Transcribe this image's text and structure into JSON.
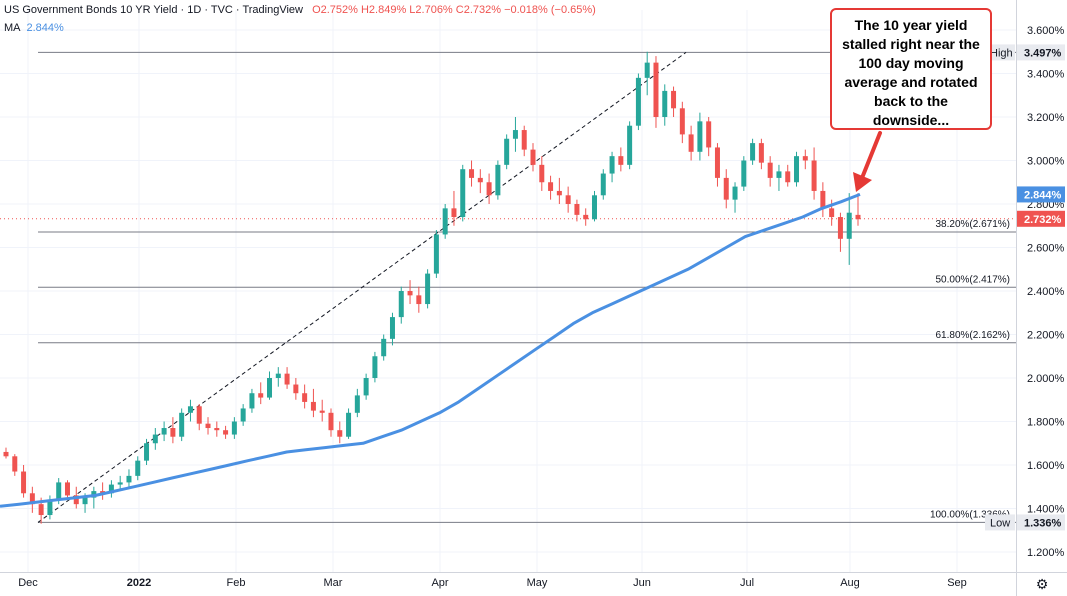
{
  "header": {
    "symbol": "US Government Bonds 10 YR Yield",
    "interval": "1D",
    "source": "TVC",
    "brand": "TradingView",
    "ohlc": "O2.752% H2.849% L2.706% C2.732% −0.018% (−0.65%)"
  },
  "indicator": {
    "label": "MA",
    "value": "2.844%",
    "color": "#4a90e2"
  },
  "callout": {
    "text": "The 10 year yield stalled right near the 100 day moving average and rotated back to the downside..."
  },
  "colors": {
    "up": "#26a69a",
    "down": "#ef5350",
    "ma": "#4a90e2",
    "arrow": "#e53935"
  },
  "chart_data": {
    "type": "candlestick",
    "ylim": [
      1.2,
      3.6
    ],
    "y_ticks": [
      "3.600%",
      "3.400%",
      "3.200%",
      "3.000%",
      "2.800%",
      "2.600%",
      "2.400%",
      "2.200%",
      "2.000%",
      "1.800%",
      "1.600%",
      "1.400%",
      "1.200%"
    ],
    "x_ticks": [
      "Dec",
      "2022",
      "Feb",
      "Mar",
      "Apr",
      "May",
      "Jun",
      "Jul",
      "Aug",
      "Sep"
    ],
    "price_tags": [
      {
        "label": "High",
        "value": "3.497%"
      },
      {
        "label": "MA",
        "value": "2.844%"
      },
      {
        "label": "Last",
        "value": "2.732%"
      },
      {
        "label": "Low",
        "value": "1.336%"
      }
    ],
    "fib_levels": [
      {
        "label": "38.20%(2.671%)",
        "value": 2.671
      },
      {
        "label": "50.00%(2.417%)",
        "value": 2.417
      },
      {
        "label": "61.80%(2.162%)",
        "value": 2.162
      },
      {
        "label": "100.00%(1.336%)",
        "value": 1.336
      }
    ],
    "high_level": 3.497,
    "last_close": 2.732,
    "ma_series": [
      1.41,
      1.42,
      1.43,
      1.44,
      1.45,
      1.46,
      1.48,
      1.5,
      1.52,
      1.54,
      1.56,
      1.58,
      1.6,
      1.62,
      1.64,
      1.66,
      1.67,
      1.68,
      1.69,
      1.7,
      1.73,
      1.76,
      1.8,
      1.84,
      1.89,
      1.95,
      2.01,
      2.07,
      2.13,
      2.19,
      2.25,
      2.3,
      2.34,
      2.38,
      2.42,
      2.46,
      2.5,
      2.55,
      2.6,
      2.65,
      2.68,
      2.71,
      2.74,
      2.78,
      2.81,
      2.844
    ],
    "candles": [
      [
        1.66,
        1.68,
        1.63,
        1.64
      ],
      [
        1.64,
        1.65,
        1.55,
        1.57
      ],
      [
        1.57,
        1.6,
        1.45,
        1.47
      ],
      [
        1.47,
        1.5,
        1.38,
        1.42
      ],
      [
        1.42,
        1.45,
        1.33,
        1.37
      ],
      [
        1.37,
        1.46,
        1.35,
        1.44
      ],
      [
        1.44,
        1.54,
        1.42,
        1.52
      ],
      [
        1.52,
        1.53,
        1.44,
        1.46
      ],
      [
        1.46,
        1.5,
        1.4,
        1.42
      ],
      [
        1.42,
        1.47,
        1.38,
        1.45
      ],
      [
        1.45,
        1.5,
        1.4,
        1.48
      ],
      [
        1.48,
        1.52,
        1.44,
        1.47
      ],
      [
        1.47,
        1.53,
        1.45,
        1.51
      ],
      [
        1.51,
        1.55,
        1.49,
        1.52
      ],
      [
        1.52,
        1.58,
        1.5,
        1.55
      ],
      [
        1.55,
        1.64,
        1.53,
        1.62
      ],
      [
        1.62,
        1.72,
        1.6,
        1.7
      ],
      [
        1.7,
        1.77,
        1.67,
        1.74
      ],
      [
        1.74,
        1.8,
        1.71,
        1.77
      ],
      [
        1.77,
        1.82,
        1.7,
        1.73
      ],
      [
        1.73,
        1.86,
        1.71,
        1.84
      ],
      [
        1.84,
        1.9,
        1.8,
        1.87
      ],
      [
        1.87,
        1.88,
        1.76,
        1.79
      ],
      [
        1.79,
        1.82,
        1.74,
        1.77
      ],
      [
        1.77,
        1.8,
        1.73,
        1.76
      ],
      [
        1.76,
        1.78,
        1.72,
        1.74
      ],
      [
        1.74,
        1.82,
        1.72,
        1.8
      ],
      [
        1.8,
        1.88,
        1.78,
        1.86
      ],
      [
        1.86,
        1.95,
        1.84,
        1.93
      ],
      [
        1.93,
        1.98,
        1.88,
        1.91
      ],
      [
        1.91,
        2.03,
        1.9,
        2.0
      ],
      [
        2.0,
        2.05,
        1.96,
        2.02
      ],
      [
        2.02,
        2.05,
        1.95,
        1.97
      ],
      [
        1.97,
        2.0,
        1.9,
        1.93
      ],
      [
        1.93,
        1.97,
        1.86,
        1.89
      ],
      [
        1.89,
        1.95,
        1.82,
        1.85
      ],
      [
        1.85,
        1.9,
        1.8,
        1.84
      ],
      [
        1.84,
        1.86,
        1.73,
        1.76
      ],
      [
        1.76,
        1.8,
        1.7,
        1.73
      ],
      [
        1.73,
        1.86,
        1.72,
        1.84
      ],
      [
        1.84,
        1.95,
        1.82,
        1.92
      ],
      [
        1.92,
        2.02,
        1.9,
        2.0
      ],
      [
        2.0,
        2.12,
        1.98,
        2.1
      ],
      [
        2.1,
        2.2,
        2.08,
        2.18
      ],
      [
        2.18,
        2.3,
        2.15,
        2.28
      ],
      [
        2.28,
        2.42,
        2.25,
        2.4
      ],
      [
        2.4,
        2.45,
        2.34,
        2.38
      ],
      [
        2.38,
        2.42,
        2.3,
        2.34
      ],
      [
        2.34,
        2.5,
        2.32,
        2.48
      ],
      [
        2.48,
        2.68,
        2.46,
        2.66
      ],
      [
        2.66,
        2.8,
        2.64,
        2.78
      ],
      [
        2.78,
        2.86,
        2.7,
        2.74
      ],
      [
        2.74,
        2.98,
        2.72,
        2.96
      ],
      [
        2.96,
        3.0,
        2.88,
        2.92
      ],
      [
        2.92,
        2.96,
        2.85,
        2.9
      ],
      [
        2.9,
        2.94,
        2.8,
        2.84
      ],
      [
        2.84,
        3.0,
        2.82,
        2.98
      ],
      [
        2.98,
        3.12,
        2.96,
        3.1
      ],
      [
        3.1,
        3.2,
        3.04,
        3.14
      ],
      [
        3.14,
        3.16,
        3.02,
        3.05
      ],
      [
        3.05,
        3.08,
        2.95,
        2.98
      ],
      [
        2.98,
        3.02,
        2.86,
        2.9
      ],
      [
        2.9,
        2.93,
        2.82,
        2.86
      ],
      [
        2.86,
        2.92,
        2.8,
        2.84
      ],
      [
        2.84,
        2.88,
        2.76,
        2.8
      ],
      [
        2.8,
        2.82,
        2.72,
        2.75
      ],
      [
        2.75,
        2.78,
        2.7,
        2.73
      ],
      [
        2.73,
        2.86,
        2.72,
        2.84
      ],
      [
        2.84,
        2.96,
        2.82,
        2.94
      ],
      [
        2.94,
        3.04,
        2.9,
        3.02
      ],
      [
        3.02,
        3.06,
        2.95,
        2.98
      ],
      [
        2.98,
        3.18,
        2.96,
        3.16
      ],
      [
        3.16,
        3.4,
        3.14,
        3.38
      ],
      [
        3.38,
        3.5,
        3.3,
        3.45
      ],
      [
        3.45,
        3.48,
        3.15,
        3.2
      ],
      [
        3.2,
        3.35,
        3.16,
        3.32
      ],
      [
        3.32,
        3.34,
        3.2,
        3.24
      ],
      [
        3.24,
        3.27,
        3.08,
        3.12
      ],
      [
        3.12,
        3.16,
        3.0,
        3.04
      ],
      [
        3.04,
        3.22,
        3.0,
        3.18
      ],
      [
        3.18,
        3.2,
        3.02,
        3.06
      ],
      [
        3.06,
        3.08,
        2.88,
        2.92
      ],
      [
        2.92,
        2.96,
        2.78,
        2.82
      ],
      [
        2.82,
        2.9,
        2.76,
        2.88
      ],
      [
        2.88,
        3.02,
        2.86,
        3.0
      ],
      [
        3.0,
        3.1,
        2.98,
        3.08
      ],
      [
        3.08,
        3.1,
        2.96,
        2.99
      ],
      [
        2.99,
        3.02,
        2.88,
        2.92
      ],
      [
        2.92,
        2.98,
        2.86,
        2.95
      ],
      [
        2.95,
        2.98,
        2.88,
        2.9
      ],
      [
        2.9,
        3.04,
        2.88,
        3.02
      ],
      [
        3.02,
        3.05,
        2.96,
        3.0
      ],
      [
        3.0,
        3.06,
        2.82,
        2.86
      ],
      [
        2.86,
        2.9,
        2.74,
        2.78
      ],
      [
        2.78,
        2.82,
        2.7,
        2.74
      ],
      [
        2.74,
        2.76,
        2.58,
        2.64
      ],
      [
        2.64,
        2.85,
        2.52,
        2.76
      ],
      [
        2.75,
        2.85,
        2.7,
        2.73
      ]
    ]
  }
}
